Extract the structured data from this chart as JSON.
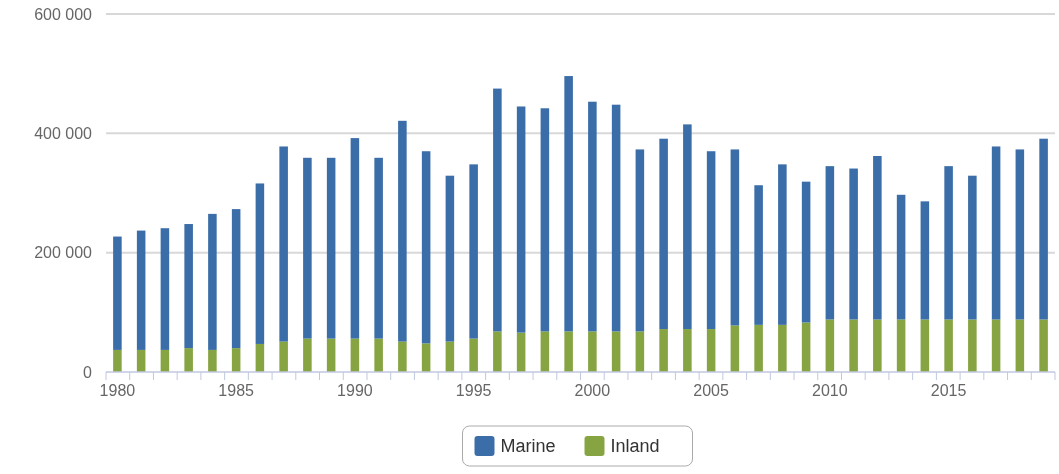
{
  "chart_data": {
    "type": "bar",
    "stacked": true,
    "categories": [
      "1980",
      null,
      null,
      null,
      null,
      "1985",
      null,
      null,
      null,
      null,
      "1990",
      null,
      null,
      null,
      null,
      "1995",
      null,
      null,
      null,
      null,
      "2000",
      null,
      null,
      null,
      null,
      "2005",
      null,
      null,
      null,
      null,
      "2010",
      null,
      null,
      null,
      null,
      "2015",
      null,
      null,
      null,
      null
    ],
    "series": [
      {
        "name": "Inland",
        "color": "#86a542",
        "values": [
          37000,
          37000,
          37000,
          40000,
          37000,
          40000,
          47000,
          51000,
          56000,
          56000,
          56000,
          56000,
          51000,
          48000,
          51000,
          56000,
          68000,
          66000,
          68000,
          68000,
          68000,
          68000,
          68000,
          72000,
          72000,
          72000,
          78000,
          79000,
          79000,
          83000,
          88000,
          88000,
          88000,
          88000,
          88000,
          88000,
          88000,
          88000,
          88000,
          88000
        ]
      },
      {
        "name": "Marine",
        "color": "#3b6ea8",
        "values": [
          190000,
          200000,
          204000,
          208000,
          228000,
          233000,
          269000,
          327000,
          303000,
          303000,
          336000,
          303000,
          370000,
          322000,
          278000,
          292000,
          407000,
          379000,
          374000,
          428000,
          385000,
          380000,
          305000,
          319000,
          343000,
          298000,
          295000,
          234000,
          269000,
          236000,
          257000,
          253000,
          274000,
          209000,
          198000,
          257000,
          241000,
          290000,
          285000,
          303000
        ]
      }
    ],
    "ylim": [
      0,
      600000
    ],
    "yticks": [
      {
        "value": 0,
        "label": "0"
      },
      {
        "value": 200000,
        "label": "200 000"
      },
      {
        "value": 400000,
        "label": "400 000"
      },
      {
        "value": 600000,
        "label": "600 000"
      }
    ],
    "grid": "y",
    "legend": "bottom"
  }
}
